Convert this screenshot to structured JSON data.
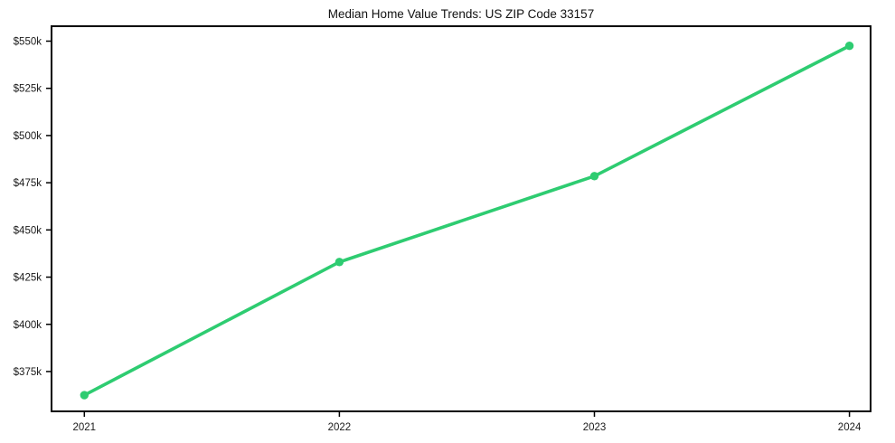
{
  "figure": {
    "title": "Median Home Value Trends: US ZIP Code 33157"
  },
  "chart_data": {
    "type": "line",
    "title": "Median Home Value Trends: US ZIP Code 33157",
    "xlabel": "",
    "ylabel": "",
    "x": [
      2021,
      2022,
      2023,
      2024
    ],
    "x_tick_labels": [
      "2021",
      "2022",
      "2023",
      "2024"
    ],
    "series": [
      {
        "name": "median-home-value",
        "values": [
          362500,
          433000,
          478500,
          547500
        ],
        "color": "#2ecc71",
        "marker": "circle"
      }
    ],
    "y_tick_values": [
      375000,
      400000,
      425000,
      450000,
      475000,
      500000,
      525000,
      550000
    ],
    "y_tick_labels": [
      "$375k",
      "$400k",
      "$425k",
      "$450k",
      "$475k",
      "$500k",
      "$525k",
      "$550k"
    ],
    "ylim": [
      353900,
      557900
    ],
    "grid": false,
    "legend": "none",
    "line_color": "#2ecc71",
    "frame_color": "#000000",
    "background_color": "#ffffff"
  }
}
